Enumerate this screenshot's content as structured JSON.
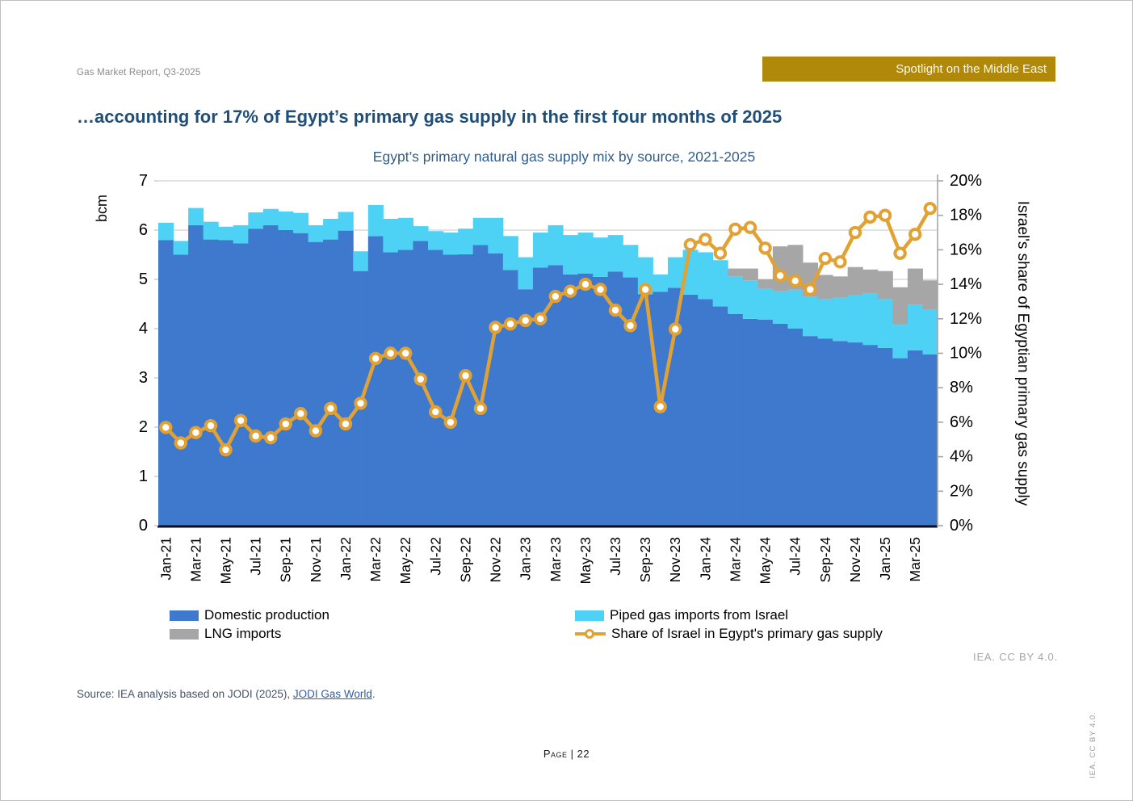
{
  "header": {
    "report_label": "Gas Market Report, Q3-2025",
    "badge": "Spotlight on the Middle East",
    "badge_color": "#b0890b"
  },
  "title": "…accounting for 17% of Egypt’s primary gas supply in the first four months of 2025",
  "chart_data": {
    "type": "bar",
    "subtype": "stacked-bars-with-line-overlay",
    "title": "Egypt’s primary natural gas supply mix by source, 2021-2025",
    "grid": "horizontal",
    "legend_position": "bottom",
    "left_axis": {
      "label": "bcm",
      "min": 0,
      "max": 7,
      "tick_step": 1
    },
    "right_axis": {
      "label": "Israel's share of Egyptian primary gas supply",
      "min": 0,
      "max": 20,
      "tick_step": 2,
      "unit": "%"
    },
    "x_label_every": 2,
    "categories": [
      "Jan-21",
      "Feb-21",
      "Mar-21",
      "Apr-21",
      "May-21",
      "Jun-21",
      "Jul-21",
      "Aug-21",
      "Sep-21",
      "Oct-21",
      "Nov-21",
      "Dec-21",
      "Jan-22",
      "Feb-22",
      "Mar-22",
      "Apr-22",
      "May-22",
      "Jun-22",
      "Jul-22",
      "Aug-22",
      "Sep-22",
      "Oct-22",
      "Nov-22",
      "Dec-22",
      "Jan-23",
      "Feb-23",
      "Mar-23",
      "Apr-23",
      "May-23",
      "Jun-23",
      "Jul-23",
      "Aug-23",
      "Sep-23",
      "Oct-23",
      "Nov-23",
      "Dec-23",
      "Jan-24",
      "Feb-24",
      "Mar-24",
      "Apr-24",
      "May-24",
      "Jun-24",
      "Jul-24",
      "Aug-24",
      "Sep-24",
      "Oct-24",
      "Nov-24",
      "Dec-24",
      "Jan-25",
      "Feb-25",
      "Mar-25",
      "Apr-25"
    ],
    "series": [
      {
        "name": "Domestic production",
        "type": "bar",
        "unit": "bcm",
        "color": "#3e79ce",
        "values": [
          5.8,
          5.5,
          6.1,
          5.81,
          5.8,
          5.73,
          6.03,
          6.1,
          6.0,
          5.94,
          5.76,
          5.81,
          5.99,
          5.17,
          5.88,
          5.55,
          5.6,
          5.78,
          5.6,
          5.5,
          5.51,
          5.7,
          5.53,
          5.19,
          4.8,
          5.24,
          5.29,
          5.1,
          5.12,
          5.05,
          5.16,
          5.04,
          4.7,
          4.75,
          4.83,
          4.69,
          4.6,
          4.45,
          4.3,
          4.2,
          4.18,
          4.1,
          4.0,
          3.85,
          3.8,
          3.75,
          3.72,
          3.67,
          3.61,
          3.4,
          3.56,
          3.48
        ]
      },
      {
        "name": "Piped gas imports from Israel",
        "type": "bar",
        "unit": "bcm",
        "color": "#4dd2f5",
        "values": [
          0.35,
          0.28,
          0.35,
          0.36,
          0.27,
          0.37,
          0.33,
          0.33,
          0.38,
          0.41,
          0.34,
          0.42,
          0.38,
          0.4,
          0.63,
          0.68,
          0.65,
          0.3,
          0.38,
          0.45,
          0.52,
          0.55,
          0.72,
          0.69,
          0.65,
          0.71,
          0.81,
          0.8,
          0.83,
          0.8,
          0.74,
          0.66,
          0.75,
          0.35,
          0.62,
          0.91,
          0.95,
          0.94,
          0.76,
          0.78,
          0.63,
          0.66,
          0.79,
          0.8,
          0.8,
          0.88,
          0.96,
          1.04,
          0.99,
          0.68,
          0.93,
          0.9
        ]
      },
      {
        "name": "LNG imports",
        "type": "bar",
        "unit": "bcm",
        "color": "#a6a6a6",
        "values": [
          0,
          0,
          0,
          0,
          0,
          0,
          0,
          0,
          0,
          0,
          0,
          0,
          0,
          0,
          0,
          0,
          0,
          0,
          0,
          0,
          0,
          0,
          0,
          0,
          0,
          0,
          0,
          0,
          0,
          0,
          0,
          0,
          0,
          0,
          0,
          0,
          0,
          0,
          0.16,
          0.24,
          0.19,
          0.91,
          0.91,
          0.69,
          0.49,
          0.43,
          0.57,
          0.49,
          0.57,
          0.76,
          0.73,
          0.6
        ]
      },
      {
        "name": "Share of Israel in Egypt's primary gas supply",
        "type": "line",
        "axis": "right",
        "unit": "%",
        "color": "#e2a233",
        "marker": "circle",
        "values": [
          5.7,
          4.8,
          5.4,
          5.8,
          4.4,
          6.1,
          5.2,
          5.1,
          5.9,
          6.5,
          5.5,
          6.8,
          5.9,
          7.1,
          9.7,
          10.0,
          10.0,
          8.5,
          6.6,
          6.0,
          8.7,
          6.8,
          11.5,
          11.7,
          11.9,
          12.0,
          13.3,
          13.6,
          14.0,
          13.7,
          12.5,
          11.6,
          13.7,
          6.9,
          11.4,
          16.3,
          16.6,
          15.8,
          17.2,
          17.3,
          16.1,
          14.5,
          14.2,
          13.7,
          15.5,
          15.3,
          17.0,
          17.9,
          18.0,
          15.8,
          16.9,
          18.4
        ]
      }
    ]
  },
  "attribution": "IEA. CC BY 4.0.",
  "source": {
    "prefix": "Source: IEA analysis based on JODI (2025), ",
    "link": "JODI Gas World",
    "suffix": "."
  },
  "footer": {
    "page": "Page | 22",
    "vertical_note": "IEA. CC BY 4.0."
  }
}
